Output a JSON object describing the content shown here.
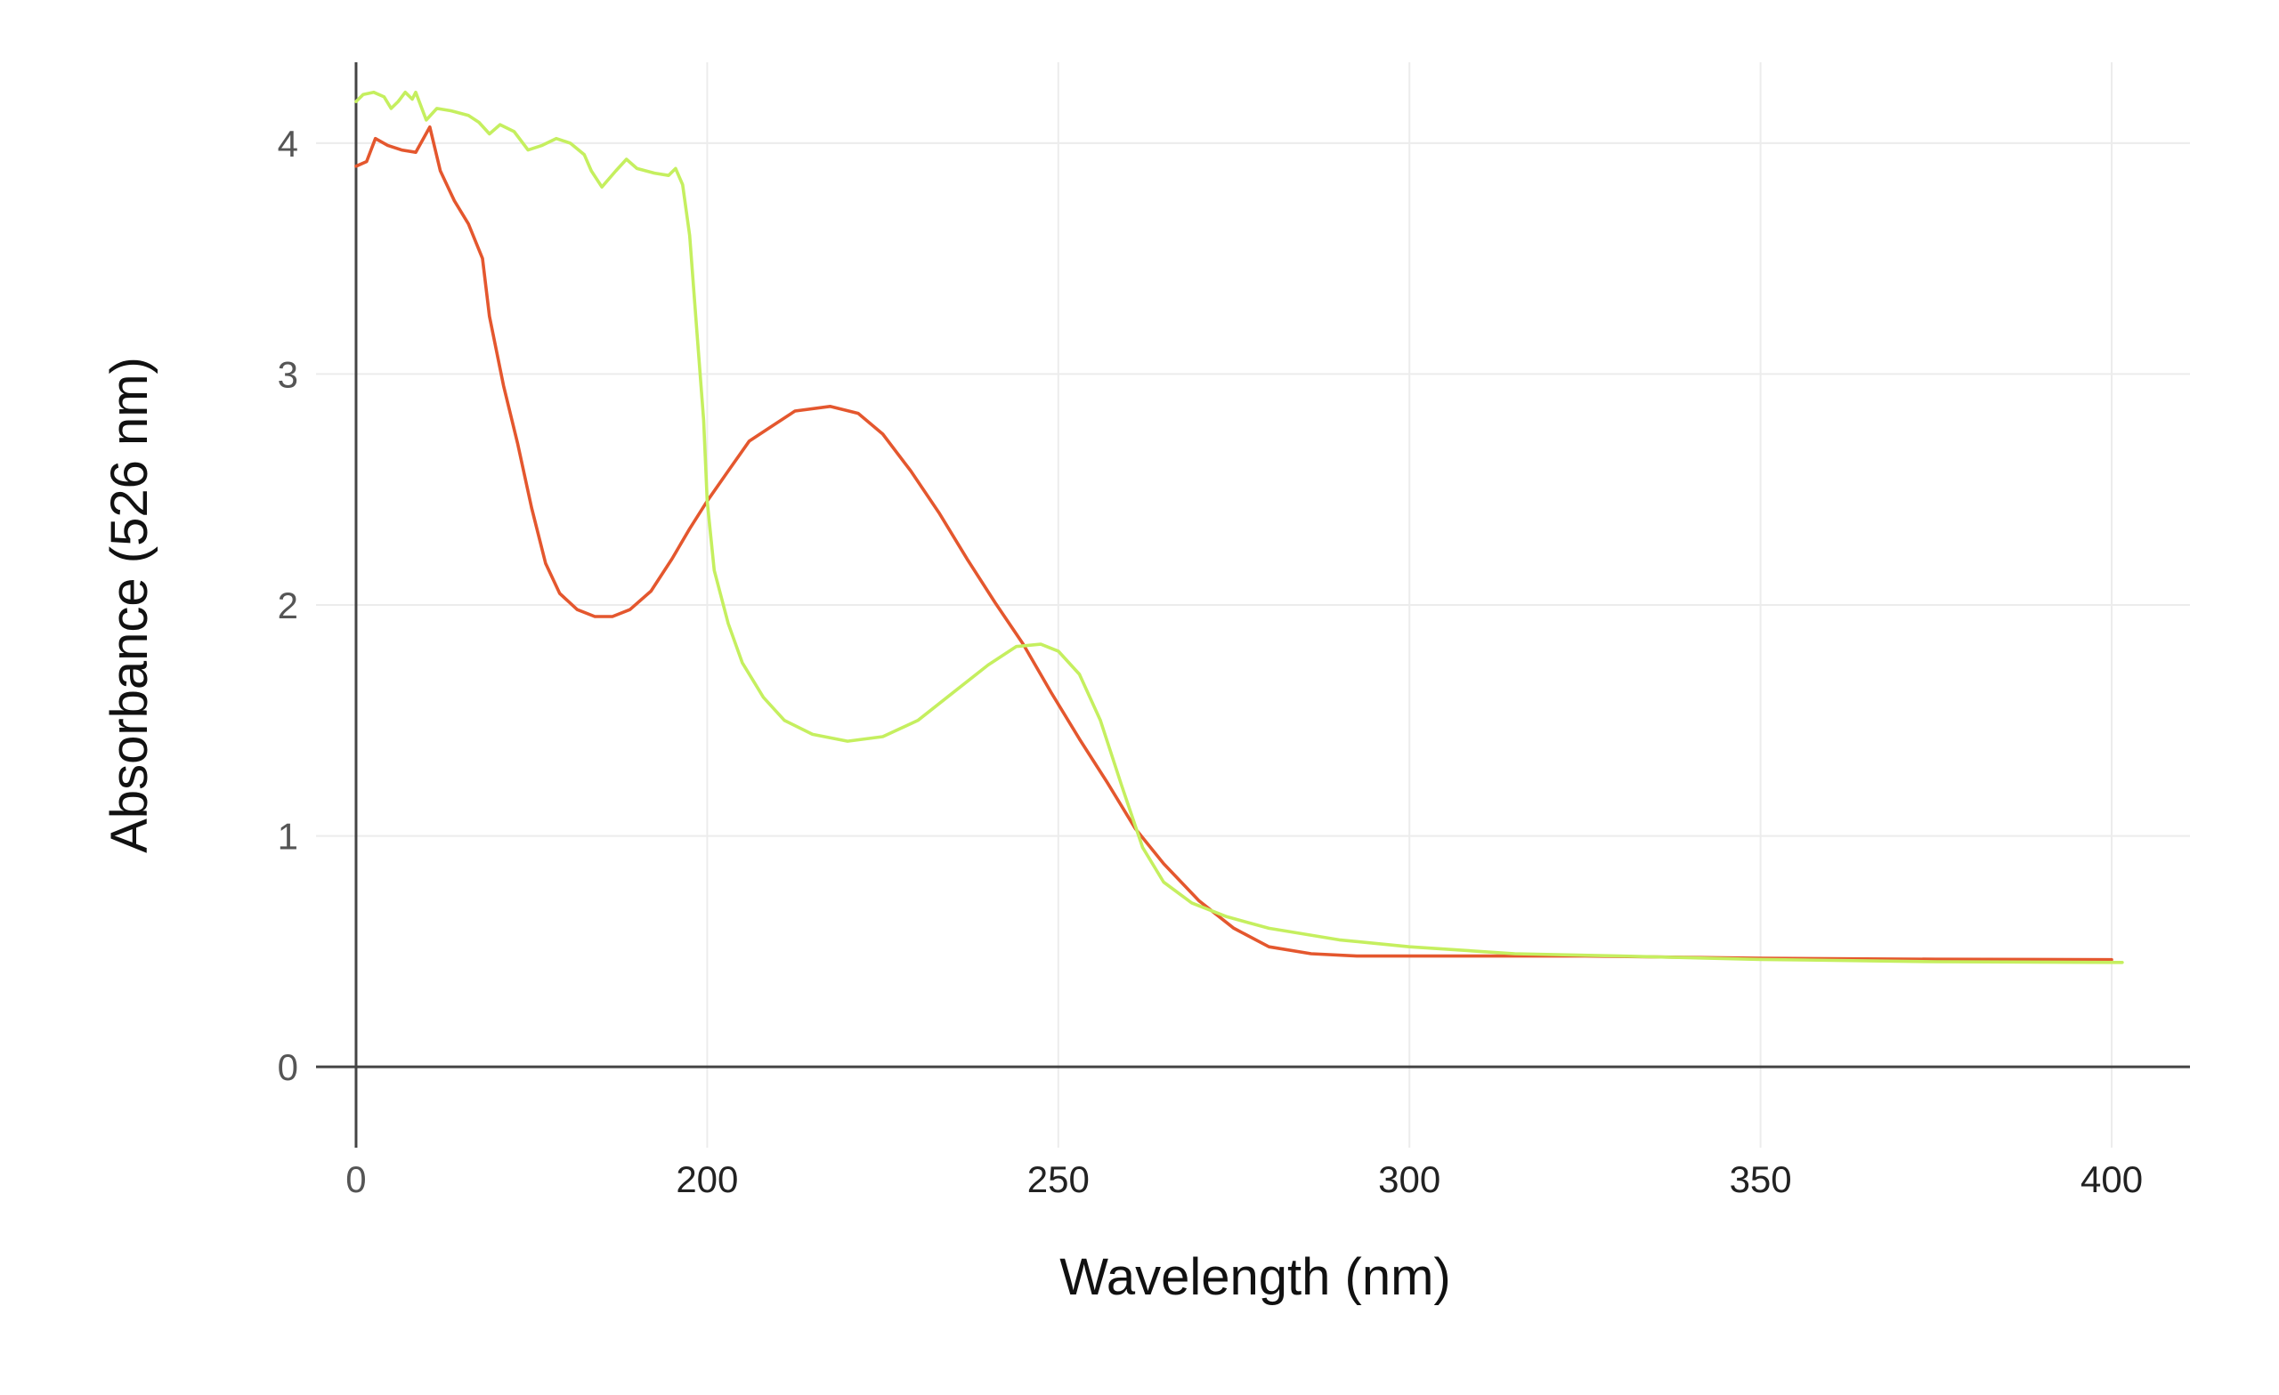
{
  "chart_data": {
    "type": "line",
    "title": "",
    "xlabel": "Wavelength (nm)",
    "ylabel": "Absorbance (526 nm)",
    "x_ticks": [
      {
        "label": "0",
        "pos": 0
      },
      {
        "label": "200",
        "pos": 1
      },
      {
        "label": "250",
        "pos": 2
      },
      {
        "label": "300",
        "pos": 3
      },
      {
        "label": "350",
        "pos": 4
      },
      {
        "label": "400",
        "pos": 5
      }
    ],
    "y_ticks": [
      "0",
      "1",
      "2",
      "3",
      "4"
    ],
    "xlim": [
      -0.114,
      5.223
    ],
    "ylim": [
      -0.35,
      4.35
    ],
    "grid": true,
    "legend": "none",
    "series": [
      {
        "color": "#e4572e",
        "points": [
          [
            0.0,
            3.9
          ],
          [
            0.03,
            3.92
          ],
          [
            0.055,
            4.02
          ],
          [
            0.09,
            3.99
          ],
          [
            0.13,
            3.97
          ],
          [
            0.17,
            3.96
          ],
          [
            0.21,
            4.07
          ],
          [
            0.24,
            3.88
          ],
          [
            0.28,
            3.75
          ],
          [
            0.32,
            3.65
          ],
          [
            0.36,
            3.5
          ],
          [
            0.38,
            3.25
          ],
          [
            0.42,
            2.95
          ],
          [
            0.46,
            2.7
          ],
          [
            0.5,
            2.42
          ],
          [
            0.54,
            2.18
          ],
          [
            0.58,
            2.05
          ],
          [
            0.63,
            1.98
          ],
          [
            0.68,
            1.95
          ],
          [
            0.73,
            1.95
          ],
          [
            0.78,
            1.98
          ],
          [
            0.84,
            2.06
          ],
          [
            0.9,
            2.2
          ],
          [
            0.95,
            2.33
          ],
          [
            1.0,
            2.45
          ],
          [
            1.06,
            2.58
          ],
          [
            1.12,
            2.71
          ],
          [
            1.18,
            2.77
          ],
          [
            1.25,
            2.84
          ],
          [
            1.35,
            2.86
          ],
          [
            1.43,
            2.83
          ],
          [
            1.5,
            2.74
          ],
          [
            1.58,
            2.58
          ],
          [
            1.66,
            2.4
          ],
          [
            1.74,
            2.2
          ],
          [
            1.82,
            2.01
          ],
          [
            1.9,
            1.83
          ],
          [
            1.98,
            1.62
          ],
          [
            2.06,
            1.42
          ],
          [
            2.14,
            1.23
          ],
          [
            2.22,
            1.03
          ],
          [
            2.3,
            0.88
          ],
          [
            2.4,
            0.72
          ],
          [
            2.5,
            0.6
          ],
          [
            2.6,
            0.52
          ],
          [
            2.72,
            0.49
          ],
          [
            2.85,
            0.48
          ],
          [
            3.0,
            0.48
          ],
          [
            3.2,
            0.48
          ],
          [
            3.5,
            0.48
          ],
          [
            4.0,
            0.47
          ],
          [
            4.5,
            0.466
          ],
          [
            5.0,
            0.464
          ]
        ]
      },
      {
        "color": "#c5ef5f",
        "points": [
          [
            0.0,
            4.18
          ],
          [
            0.02,
            4.21
          ],
          [
            0.05,
            4.22
          ],
          [
            0.08,
            4.2
          ],
          [
            0.1,
            4.15
          ],
          [
            0.12,
            4.18
          ],
          [
            0.14,
            4.22
          ],
          [
            0.16,
            4.19
          ],
          [
            0.17,
            4.22
          ],
          [
            0.2,
            4.1
          ],
          [
            0.23,
            4.15
          ],
          [
            0.27,
            4.14
          ],
          [
            0.32,
            4.12
          ],
          [
            0.35,
            4.09
          ],
          [
            0.38,
            4.04
          ],
          [
            0.41,
            4.08
          ],
          [
            0.45,
            4.05
          ],
          [
            0.49,
            3.97
          ],
          [
            0.53,
            3.99
          ],
          [
            0.57,
            4.02
          ],
          [
            0.61,
            4.0
          ],
          [
            0.65,
            3.95
          ],
          [
            0.67,
            3.88
          ],
          [
            0.7,
            3.81
          ],
          [
            0.74,
            3.88
          ],
          [
            0.77,
            3.93
          ],
          [
            0.8,
            3.89
          ],
          [
            0.85,
            3.87
          ],
          [
            0.89,
            3.86
          ],
          [
            0.91,
            3.89
          ],
          [
            0.93,
            3.82
          ],
          [
            0.95,
            3.6
          ],
          [
            0.97,
            3.2
          ],
          [
            0.99,
            2.8
          ],
          [
            1.0,
            2.45
          ],
          [
            1.02,
            2.15
          ],
          [
            1.06,
            1.92
          ],
          [
            1.1,
            1.75
          ],
          [
            1.16,
            1.6
          ],
          [
            1.22,
            1.5
          ],
          [
            1.3,
            1.44
          ],
          [
            1.4,
            1.41
          ],
          [
            1.5,
            1.43
          ],
          [
            1.6,
            1.5
          ],
          [
            1.7,
            1.62
          ],
          [
            1.8,
            1.74
          ],
          [
            1.88,
            1.82
          ],
          [
            1.95,
            1.83
          ],
          [
            2.0,
            1.8
          ],
          [
            2.06,
            1.7
          ],
          [
            2.12,
            1.5
          ],
          [
            2.18,
            1.22
          ],
          [
            2.24,
            0.95
          ],
          [
            2.3,
            0.8
          ],
          [
            2.38,
            0.71
          ],
          [
            2.48,
            0.65
          ],
          [
            2.6,
            0.6
          ],
          [
            2.8,
            0.55
          ],
          [
            3.0,
            0.52
          ],
          [
            3.3,
            0.49
          ],
          [
            3.6,
            0.48
          ],
          [
            4.0,
            0.465
          ],
          [
            4.5,
            0.455
          ],
          [
            5.03,
            0.452
          ]
        ]
      }
    ]
  }
}
